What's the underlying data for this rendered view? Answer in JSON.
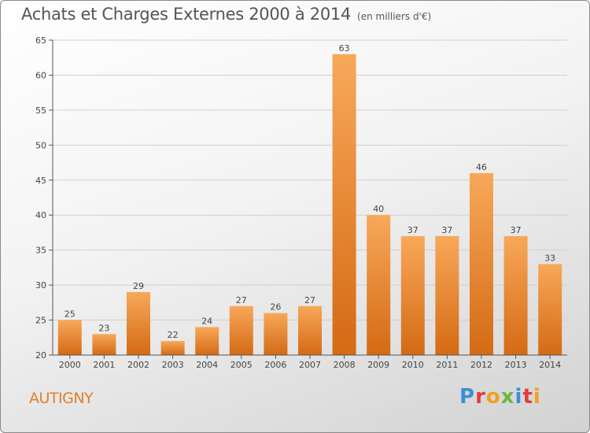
{
  "title": "Achats et Charges Externes 2000 à 2014",
  "unit_note": "(en milliers d'€)",
  "place": "AUTIGNY",
  "logo": {
    "text": "Proxiti",
    "letters": [
      {
        "ch": "P",
        "color": "#3a8fd6"
      },
      {
        "ch": "r",
        "color": "#e23b3b"
      },
      {
        "ch": "o",
        "color": "#f2a020"
      },
      {
        "ch": "x",
        "color": "#6bb83a"
      },
      {
        "ch": "i",
        "color": "#3a8fd6"
      },
      {
        "ch": "t",
        "color": "#e23b3b"
      },
      {
        "ch": "i",
        "color": "#f2a020"
      }
    ]
  },
  "colors": {
    "bar_top": "#f8a85a",
    "bar_bottom": "#d46a14",
    "axis": "#555555",
    "grid": "#cfcfcf",
    "place": "#e07f2a"
  },
  "chart_data": {
    "type": "bar",
    "categories": [
      "2000",
      "2001",
      "2002",
      "2003",
      "2004",
      "2005",
      "2006",
      "2007",
      "2008",
      "2009",
      "2010",
      "2011",
      "2012",
      "2013",
      "2014"
    ],
    "values": [
      25,
      23,
      29,
      22,
      24,
      27,
      26,
      27,
      63,
      40,
      37,
      37,
      46,
      37,
      33
    ],
    "ylim": [
      20,
      65
    ],
    "yticks": [
      20,
      25,
      30,
      35,
      40,
      45,
      50,
      55,
      60,
      65
    ],
    "grid": true,
    "data_labels": true
  }
}
